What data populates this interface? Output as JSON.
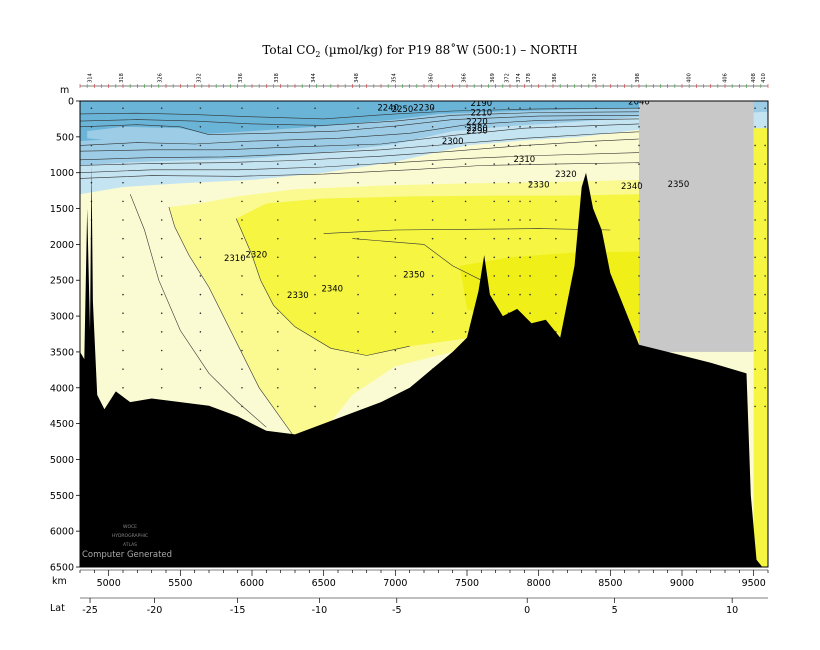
{
  "chart_data": {
    "type": "contour-section",
    "title_main": "Total CO",
    "title_sub": "2",
    "title_rest": " (µmol/kg) for P19 88˚W (500:1) – NORTH",
    "x_axis": {
      "label": "km",
      "range": [
        4800,
        9600
      ],
      "ticks": [
        5000,
        5500,
        6000,
        6500,
        7000,
        7500,
        8000,
        8500,
        9000,
        9500
      ]
    },
    "y_axis": {
      "label": "m",
      "range": [
        0,
        6500
      ],
      "inverted": true,
      "ticks": [
        0,
        500,
        1000,
        1500,
        2000,
        2500,
        3000,
        3500,
        4000,
        4500,
        5000,
        5500,
        6000,
        6500
      ]
    },
    "lat_axis": {
      "label": "Lat",
      "ticks": [
        {
          "km": 4870,
          "lat": "-25"
        },
        {
          "km": 5320,
          "lat": "-20"
        },
        {
          "km": 5900,
          "lat": "-15"
        },
        {
          "km": 6470,
          "lat": "-10"
        },
        {
          "km": 7010,
          "lat": "-5"
        },
        {
          "km": 7920,
          "lat": "0"
        },
        {
          "km": 8530,
          "lat": "5"
        },
        {
          "km": 9350,
          "lat": "10"
        }
      ]
    },
    "stations": [
      {
        "km": 4880,
        "label": "314"
      },
      {
        "km": 5100,
        "label": "318"
      },
      {
        "km": 5370,
        "label": "326"
      },
      {
        "km": 5640,
        "label": "332"
      },
      {
        "km": 5930,
        "label": "336"
      },
      {
        "km": 6180,
        "label": "338"
      },
      {
        "km": 6440,
        "label": "344"
      },
      {
        "km": 6740,
        "label": "348"
      },
      {
        "km": 7000,
        "label": "354"
      },
      {
        "km": 7260,
        "label": "360"
      },
      {
        "km": 7490,
        "label": "366"
      },
      {
        "km": 7690,
        "label": "369"
      },
      {
        "km": 7790,
        "label": "372"
      },
      {
        "km": 7870,
        "label": "374"
      },
      {
        "km": 7940,
        "label": "378"
      },
      {
        "km": 8120,
        "label": "386"
      },
      {
        "km": 8400,
        "label": "392"
      },
      {
        "km": 8700,
        "label": "398"
      },
      {
        "km": 9060,
        "label": "400"
      },
      {
        "km": 9310,
        "label": "406"
      },
      {
        "km": 9510,
        "label": "408"
      },
      {
        "km": 9580,
        "label": "410"
      }
    ],
    "contour_labels": [
      {
        "km": 6950,
        "depth": 130,
        "text": "2240"
      },
      {
        "km": 7050,
        "depth": 150,
        "text": "2250"
      },
      {
        "km": 7200,
        "depth": 130,
        "text": "2230"
      },
      {
        "km": 7600,
        "depth": 70,
        "text": "2190"
      },
      {
        "km": 7600,
        "depth": 200,
        "text": "2210"
      },
      {
        "km": 7570,
        "depth": 330,
        "text": "2220"
      },
      {
        "km": 7570,
        "depth": 420,
        "text": "2280"
      },
      {
        "km": 7570,
        "depth": 450,
        "text": "2290"
      },
      {
        "km": 8700,
        "depth": 50,
        "text": "2040"
      },
      {
        "km": 7400,
        "depth": 600,
        "text": "2300"
      },
      {
        "km": 7900,
        "depth": 850,
        "text": "2310"
      },
      {
        "km": 8190,
        "depth": 1060,
        "text": "2320"
      },
      {
        "km": 8000,
        "depth": 1210,
        "text": "2330"
      },
      {
        "km": 8650,
        "depth": 1230,
        "text": "2340"
      },
      {
        "km": 8975,
        "depth": 1200,
        "text": "2350"
      },
      {
        "km": 5880,
        "depth": 2230,
        "text": "2310"
      },
      {
        "km": 6030,
        "depth": 2180,
        "text": "2320"
      },
      {
        "km": 6320,
        "depth": 2750,
        "text": "2330"
      },
      {
        "km": 6560,
        "depth": 2660,
        "text": "2340"
      },
      {
        "km": 7130,
        "depth": 2460,
        "text": "2350"
      }
    ],
    "no_data_region": {
      "km_range": [
        8700,
        9500
      ],
      "depth_range": [
        0,
        3500
      ]
    },
    "colors": {
      "surface_blue": "#6ab4d8",
      "mid_blue": "#9dcde6",
      "light_blue": "#c5e4f2",
      "cream": "#fbfbd3",
      "light_yellow": "#fafa90",
      "yellow": "#f5f542",
      "bright_yellow": "#f0f018",
      "bottom": "#000000",
      "no_data": "#c8c8c8"
    },
    "watermark": [
      "WOCE",
      "HYDROGRAPHIC",
      "ATLAS"
    ],
    "footer_text": "Computer Generated"
  }
}
